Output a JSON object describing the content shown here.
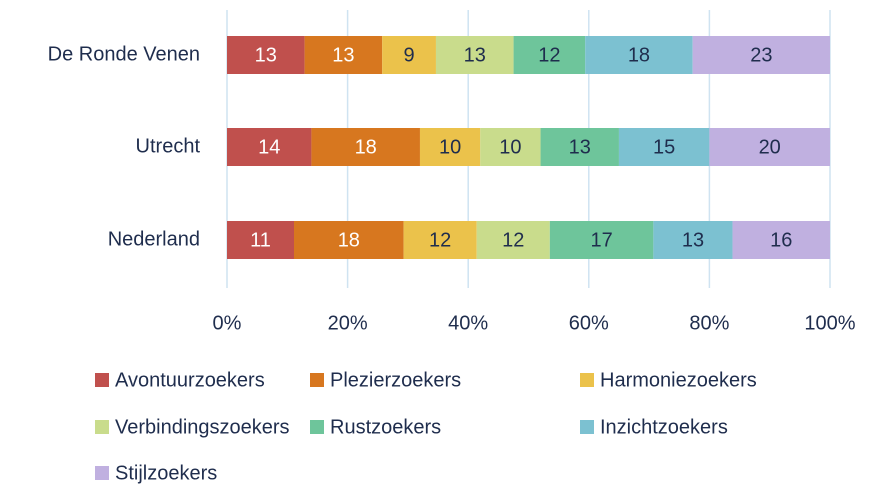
{
  "chart_data": {
    "type": "bar",
    "orientation": "horizontal",
    "stacked": "percent",
    "categories": [
      "De Ronde Venen",
      "Utrecht",
      "Nederland"
    ],
    "series": [
      {
        "name": "Avontuurzoekers",
        "color": "#c0504d",
        "label_color": "#ffffff",
        "values": [
          13,
          14,
          11
        ]
      },
      {
        "name": "Plezierzoekers",
        "color": "#d7771f",
        "label_color": "#ffffff",
        "values": [
          13,
          18,
          18
        ]
      },
      {
        "name": "Harmoniezoekers",
        "color": "#ebc24b",
        "label_color": "#1f2d4d",
        "values": [
          9,
          10,
          12
        ]
      },
      {
        "name": "Verbindingszoekers",
        "color": "#c9dc8c",
        "label_color": "#1f2d4d",
        "values": [
          13,
          10,
          12
        ]
      },
      {
        "name": "Rustzoekers",
        "color": "#6ec59b",
        "label_color": "#1f2d4d",
        "values": [
          12,
          13,
          17
        ]
      },
      {
        "name": "Inzichtzoekers",
        "color": "#7cc1d1",
        "label_color": "#1f2d4d",
        "values": [
          18,
          15,
          13
        ]
      },
      {
        "name": "Stijlzoekers",
        "color": "#c0b0e0",
        "label_color": "#1f2d4d",
        "values": [
          23,
          20,
          16
        ]
      }
    ],
    "xlim": [
      0,
      100
    ],
    "xticks": [
      {
        "value": 0,
        "label": "0%"
      },
      {
        "value": 20,
        "label": "20%"
      },
      {
        "value": 40,
        "label": "40%"
      },
      {
        "value": 60,
        "label": "60%"
      },
      {
        "value": 80,
        "label": "80%"
      },
      {
        "value": 100,
        "label": "100%"
      }
    ],
    "grid": true,
    "legend": "bottom"
  }
}
